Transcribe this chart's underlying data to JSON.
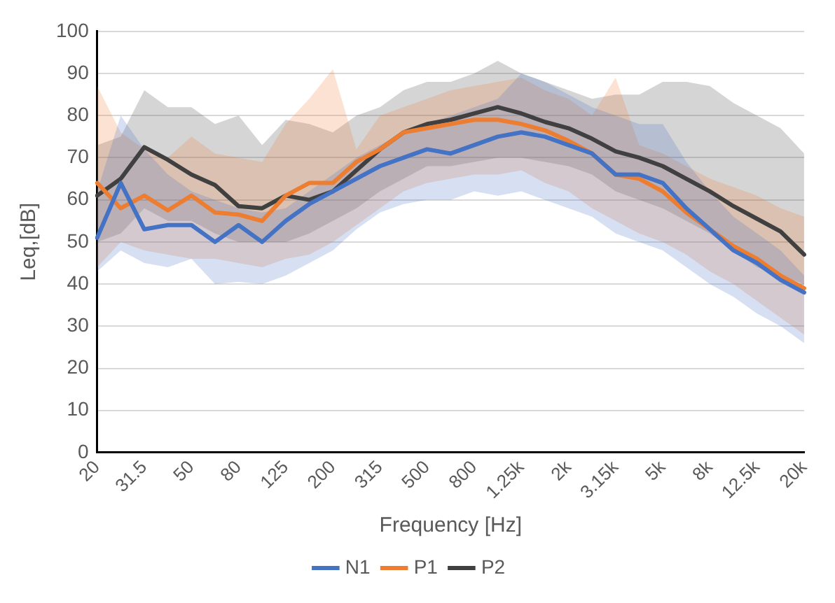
{
  "chart_data": {
    "type": "line",
    "xlabel": "Frequency [Hz]",
    "ylabel": "Leq,[dB]",
    "categories": [
      "20",
      null,
      "31.5",
      null,
      "50",
      null,
      "80",
      null,
      "125",
      null,
      "200",
      null,
      "315",
      null,
      "500",
      null,
      "800",
      null,
      "1.25k",
      null,
      "2k",
      null,
      "3.15k",
      null,
      "5k",
      null,
      "8k",
      null,
      "12.5k",
      null,
      "20k"
    ],
    "ylim": [
      0,
      100
    ],
    "yticks": [
      0,
      10,
      20,
      30,
      40,
      50,
      60,
      70,
      80,
      90,
      100
    ],
    "grid": "y",
    "legend": "bottom",
    "marker": "none",
    "line_style": "solid",
    "series": [
      {
        "name": "N1",
        "color": "#4472c4",
        "values": [
          51,
          64,
          53,
          54,
          54,
          50,
          54,
          50,
          55,
          59,
          62,
          65,
          68,
          70,
          72,
          71,
          73,
          75,
          76,
          75,
          73,
          71,
          66,
          66,
          64,
          58,
          53,
          48,
          45,
          41,
          38
        ],
        "lower": [
          43,
          48,
          45,
          44,
          46,
          40,
          40.5,
          40,
          42,
          45,
          48,
          53,
          57,
          59,
          60,
          60,
          62,
          61,
          62,
          60,
          58,
          56,
          52,
          50,
          48,
          44,
          40,
          37,
          33,
          30,
          26
        ],
        "upper": [
          62,
          80,
          72,
          66,
          62,
          60,
          58,
          57,
          58,
          62,
          66,
          70,
          73,
          76,
          78,
          80,
          82,
          84,
          90,
          88,
          85,
          82,
          80,
          78,
          78,
          69,
          62,
          56,
          52,
          48,
          42
        ]
      },
      {
        "name": "P1",
        "color": "#ed7d31",
        "values": [
          64,
          58,
          61,
          57.5,
          61,
          57,
          56.5,
          55,
          61,
          64,
          64,
          69,
          72,
          76,
          77,
          78,
          79,
          79,
          78,
          76.5,
          74,
          71,
          66,
          65,
          62,
          57,
          53,
          49,
          46,
          42,
          39
        ],
        "lower": [
          44,
          50,
          48,
          47,
          46,
          46,
          45,
          44,
          46,
          47,
          50,
          54,
          58,
          62,
          64,
          65,
          66,
          66,
          67,
          64,
          62,
          58,
          55,
          52,
          50,
          47,
          43,
          40,
          36,
          32,
          28
        ],
        "upper": [
          87,
          76,
          72,
          70,
          75,
          71,
          70,
          69,
          78,
          84,
          91,
          72,
          80,
          82,
          84,
          86,
          87,
          88,
          89,
          86,
          84,
          80,
          89,
          73,
          71,
          68,
          65,
          63,
          61,
          58,
          56
        ]
      },
      {
        "name": "P2",
        "color": "#404040",
        "values": [
          61,
          65,
          72.5,
          69.5,
          66,
          63.5,
          58.5,
          58,
          61,
          60,
          62,
          67,
          72,
          76,
          78,
          79,
          80.5,
          82,
          80.5,
          78.5,
          77,
          74.5,
          71.5,
          70,
          68,
          65,
          62,
          58.5,
          55.5,
          52.5,
          47
        ],
        "lower": [
          50,
          52,
          58,
          55,
          55,
          52,
          50,
          50,
          50,
          52,
          55,
          58,
          62,
          65,
          68,
          68,
          69,
          70,
          70,
          69,
          68,
          66,
          62,
          60,
          58,
          55,
          52,
          48,
          44,
          42,
          40
        ],
        "upper": [
          73,
          75,
          86,
          82,
          82,
          78,
          80,
          73,
          79,
          78,
          76,
          80,
          82,
          86,
          88,
          88,
          90,
          93,
          90,
          88,
          86,
          84,
          85,
          85,
          88,
          88,
          87,
          83,
          80,
          77,
          71
        ]
      }
    ]
  }
}
